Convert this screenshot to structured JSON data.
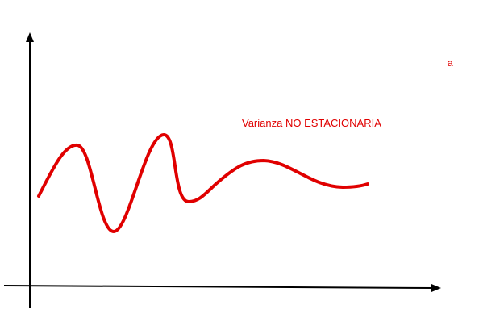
{
  "caption": "Varianza NO ESTACIONARIA",
  "edge_mark": "a",
  "colors": {
    "curve": "#e00000",
    "axes": "#000000",
    "text": "#e00000"
  }
}
